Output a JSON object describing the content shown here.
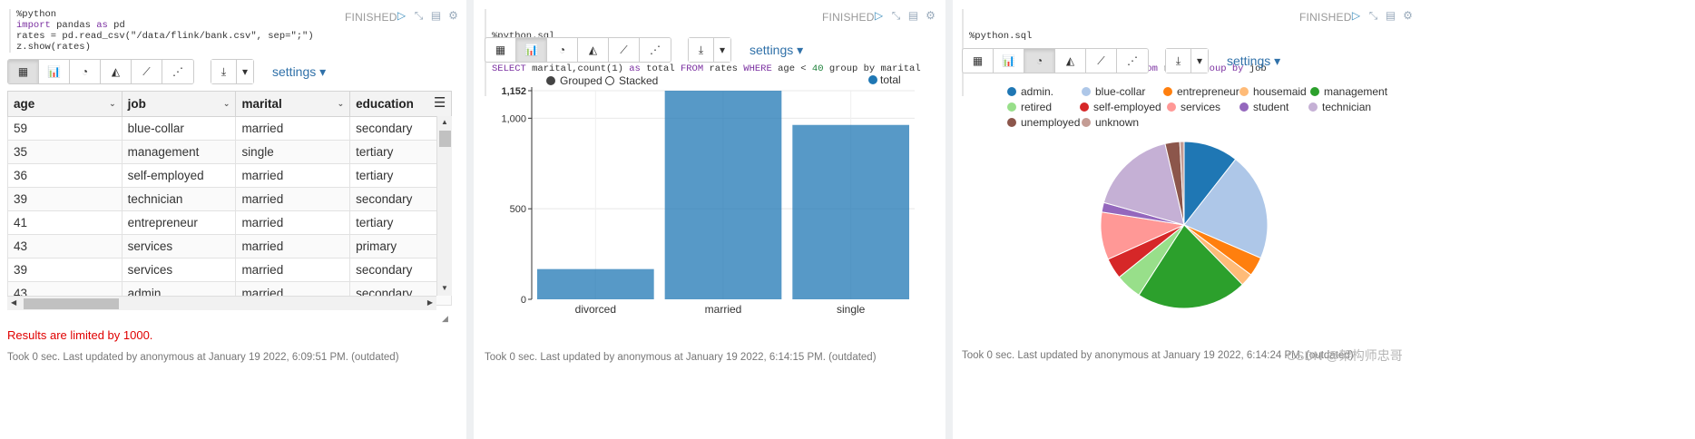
{
  "paragraph1": {
    "code_lines": [
      {
        "parts": [
          {
            "t": "%python",
            "c": ""
          }
        ]
      },
      {
        "parts": [
          {
            "t": "import",
            "c": "kw"
          },
          {
            "t": " pandas ",
            "c": ""
          },
          {
            "t": "as",
            "c": "kw"
          },
          {
            "t": " pd",
            "c": ""
          }
        ]
      },
      {
        "parts": [
          {
            "t": "rates = pd.read_csv(\"/data/flink/bank.csv\", sep=\";\")",
            "c": ""
          }
        ]
      },
      {
        "parts": [
          {
            "t": "z.show(rates)",
            "c": ""
          }
        ]
      }
    ],
    "status": "FINISHED",
    "settings_label": "settings",
    "table": {
      "columns": [
        "age",
        "job",
        "marital",
        "education"
      ],
      "rows": [
        [
          "59",
          "blue-collar",
          "married",
          "secondary"
        ],
        [
          "35",
          "management",
          "single",
          "tertiary"
        ],
        [
          "36",
          "self-employed",
          "married",
          "tertiary"
        ],
        [
          "39",
          "technician",
          "married",
          "secondary"
        ],
        [
          "41",
          "entrepreneur",
          "married",
          "tertiary"
        ],
        [
          "43",
          "services",
          "married",
          "primary"
        ],
        [
          "39",
          "services",
          "married",
          "secondary"
        ],
        [
          "43",
          "admin.",
          "married",
          "secondary"
        ]
      ]
    },
    "limit_message": "Results are limited by 1000.",
    "footer": "Took 0 sec. Last updated by anonymous at January 19 2022, 6:09:51 PM. (outdated)"
  },
  "paragraph2": {
    "code_line1": "%python.sql",
    "code_line2_parts": [
      {
        "t": "SELECT",
        "c": "kw"
      },
      {
        "t": " marital,count(1) ",
        "c": ""
      },
      {
        "t": "as",
        "c": "kw"
      },
      {
        "t": " total ",
        "c": ""
      },
      {
        "t": "FROM",
        "c": "kw"
      },
      {
        "t": " rates ",
        "c": ""
      },
      {
        "t": "WHERE",
        "c": "kw"
      },
      {
        "t": " age < ",
        "c": ""
      },
      {
        "t": "40",
        "c": "num"
      },
      {
        "t": " group by marital",
        "c": ""
      }
    ],
    "status": "FINISHED",
    "settings_label": "settings",
    "legend_grouped": "Grouped",
    "legend_stacked": "Stacked",
    "footer": "Took 0 sec. Last updated by anonymous at January 19 2022, 6:14:15 PM. (outdated)"
  },
  "paragraph3": {
    "code_line1": "%python.sql",
    "code_line2_parts": [
      {
        "t": "select",
        "c": "kw"
      },
      {
        "t": " job,count(1) ",
        "c": ""
      },
      {
        "t": "as",
        "c": "kw"
      },
      {
        "t": " total ",
        "c": ""
      },
      {
        "t": "from",
        "c": "kw"
      },
      {
        "t": " rates ",
        "c": ""
      },
      {
        "t": "group by",
        "c": "kw"
      },
      {
        "t": " job",
        "c": ""
      }
    ],
    "status": "FINISHED",
    "settings_label": "settings",
    "footer": "Took 0 sec. Last updated by anonymous at January 19 2022, 6:14:24 PM. (outdated)",
    "watermark": "CSDN @架构师忠哥"
  },
  "chart_data": [
    {
      "type": "bar",
      "categories": [
        "divorced",
        "married",
        "single"
      ],
      "series": [
        {
          "name": "total",
          "values": [
            167,
            1152,
            963
          ]
        }
      ],
      "ylim": [
        0,
        1152
      ],
      "y_ticks": [
        "0",
        "500",
        "1,000",
        "1,152"
      ],
      "legend_position": "top-right",
      "grid": true,
      "color": "#1f77b4"
    },
    {
      "type": "pie",
      "labels": [
        "admin.",
        "blue-collar",
        "entrepreneur",
        "housemaid",
        "management",
        "retired",
        "self-employed",
        "services",
        "student",
        "technician",
        "unemployed",
        "unknown"
      ],
      "values": [
        478,
        946,
        168,
        112,
        969,
        230,
        183,
        417,
        84,
        768,
        128,
        38
      ],
      "colors": [
        "#1f77b4",
        "#aec7e8",
        "#ff7f0e",
        "#ffbb78",
        "#2ca02c",
        "#98df8a",
        "#d62728",
        "#ff9896",
        "#9467bd",
        "#c5b0d5",
        "#8c564b",
        "#c49c94"
      ],
      "legend_position": "top"
    }
  ]
}
